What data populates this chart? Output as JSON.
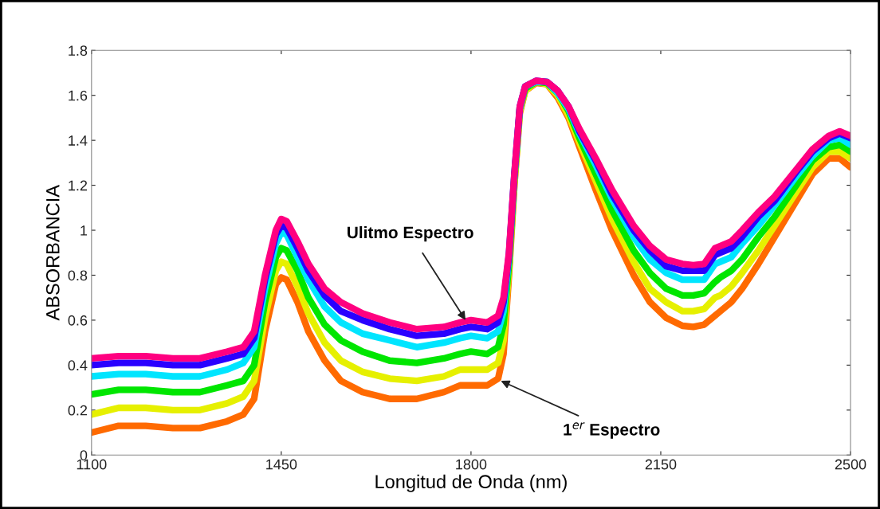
{
  "chart_data": {
    "type": "line",
    "xlabel": "Longitud de Onda (nm)",
    "ylabel": "ABSORBANCIA",
    "x": [
      1100,
      1150,
      1200,
      1250,
      1300,
      1350,
      1380,
      1400,
      1420,
      1440,
      1450,
      1460,
      1480,
      1500,
      1530,
      1560,
      1600,
      1650,
      1700,
      1750,
      1780,
      1800,
      1830,
      1850,
      1860,
      1870,
      1880,
      1890,
      1900,
      1920,
      1940,
      1960,
      1980,
      2000,
      2030,
      2060,
      2100,
      2130,
      2160,
      2190,
      2210,
      2230,
      2250,
      2260,
      2280,
      2300,
      2330,
      2360,
      2400,
      2430,
      2460,
      2480,
      2500
    ],
    "series": [
      {
        "color": "#ff6a00",
        "values": [
          0.1,
          0.13,
          0.13,
          0.12,
          0.12,
          0.15,
          0.18,
          0.25,
          0.55,
          0.76,
          0.79,
          0.78,
          0.68,
          0.55,
          0.42,
          0.33,
          0.28,
          0.25,
          0.25,
          0.28,
          0.31,
          0.31,
          0.31,
          0.34,
          0.45,
          0.8,
          1.2,
          1.52,
          1.62,
          1.655,
          1.65,
          1.59,
          1.5,
          1.37,
          1.18,
          1.0,
          0.8,
          0.68,
          0.61,
          0.575,
          0.57,
          0.58,
          0.62,
          0.64,
          0.68,
          0.74,
          0.85,
          0.97,
          1.13,
          1.25,
          1.32,
          1.32,
          1.28
        ]
      },
      {
        "color": "#e6f000",
        "values": [
          0.18,
          0.21,
          0.21,
          0.2,
          0.2,
          0.23,
          0.26,
          0.33,
          0.61,
          0.82,
          0.86,
          0.85,
          0.75,
          0.63,
          0.5,
          0.42,
          0.37,
          0.34,
          0.33,
          0.35,
          0.38,
          0.38,
          0.38,
          0.41,
          0.51,
          0.83,
          1.21,
          1.53,
          1.62,
          1.66,
          1.65,
          1.6,
          1.51,
          1.39,
          1.22,
          1.05,
          0.86,
          0.74,
          0.68,
          0.64,
          0.64,
          0.65,
          0.7,
          0.71,
          0.75,
          0.81,
          0.91,
          1.02,
          1.17,
          1.28,
          1.35,
          1.35,
          1.32
        ]
      },
      {
        "color": "#00e600",
        "values": [
          0.27,
          0.29,
          0.29,
          0.28,
          0.28,
          0.31,
          0.33,
          0.4,
          0.68,
          0.88,
          0.92,
          0.91,
          0.82,
          0.7,
          0.58,
          0.51,
          0.46,
          0.42,
          0.41,
          0.43,
          0.45,
          0.46,
          0.45,
          0.48,
          0.58,
          0.85,
          1.23,
          1.54,
          1.63,
          1.66,
          1.655,
          1.61,
          1.53,
          1.41,
          1.25,
          1.09,
          0.91,
          0.81,
          0.74,
          0.71,
          0.71,
          0.72,
          0.77,
          0.79,
          0.82,
          0.87,
          0.97,
          1.06,
          1.2,
          1.31,
          1.37,
          1.38,
          1.35
        ]
      },
      {
        "color": "#00e5ff",
        "values": [
          0.35,
          0.36,
          0.36,
          0.35,
          0.35,
          0.38,
          0.41,
          0.48,
          0.74,
          0.94,
          0.99,
          0.98,
          0.88,
          0.78,
          0.66,
          0.59,
          0.54,
          0.51,
          0.48,
          0.5,
          0.52,
          0.53,
          0.52,
          0.55,
          0.64,
          0.88,
          1.24,
          1.54,
          1.64,
          1.66,
          1.66,
          1.61,
          1.54,
          1.43,
          1.29,
          1.14,
          0.97,
          0.87,
          0.81,
          0.78,
          0.78,
          0.78,
          0.85,
          0.86,
          0.88,
          0.94,
          1.02,
          1.11,
          1.24,
          1.33,
          1.4,
          1.41,
          1.38
        ]
      },
      {
        "color": "#2a00ff",
        "values": [
          0.4,
          0.41,
          0.41,
          0.4,
          0.4,
          0.43,
          0.45,
          0.52,
          0.78,
          0.98,
          1.02,
          1.01,
          0.92,
          0.82,
          0.71,
          0.64,
          0.6,
          0.56,
          0.53,
          0.54,
          0.56,
          0.57,
          0.56,
          0.59,
          0.68,
          0.89,
          1.25,
          1.55,
          1.64,
          1.665,
          1.66,
          1.62,
          1.55,
          1.44,
          1.31,
          1.16,
          1.0,
          0.91,
          0.84,
          0.82,
          0.82,
          0.82,
          0.89,
          0.9,
          0.92,
          0.97,
          1.06,
          1.13,
          1.26,
          1.35,
          1.41,
          1.43,
          1.41
        ]
      },
      {
        "color": "#ff0080",
        "values": [
          0.43,
          0.44,
          0.44,
          0.43,
          0.43,
          0.46,
          0.48,
          0.55,
          0.8,
          1.0,
          1.05,
          1.04,
          0.95,
          0.85,
          0.74,
          0.68,
          0.63,
          0.59,
          0.56,
          0.57,
          0.59,
          0.6,
          0.59,
          0.62,
          0.7,
          0.9,
          1.25,
          1.55,
          1.64,
          1.665,
          1.66,
          1.62,
          1.55,
          1.45,
          1.32,
          1.18,
          1.02,
          0.93,
          0.87,
          0.85,
          0.845,
          0.85,
          0.92,
          0.93,
          0.95,
          1.0,
          1.08,
          1.15,
          1.27,
          1.36,
          1.42,
          1.44,
          1.42
        ]
      }
    ],
    "xlim": [
      1100,
      2500
    ],
    "xticks": [
      1100,
      1450,
      1800,
      2150,
      2500
    ],
    "ylim": [
      0,
      1.8
    ],
    "yticks": [
      0,
      0.2,
      0.4,
      0.6,
      0.8,
      1,
      1.2,
      1.4,
      1.6,
      1.8
    ],
    "grid": false,
    "legend": false,
    "annotations": [
      {
        "text": "Ulitmo Espectro",
        "x": 1790,
        "y": 0.6
      },
      {
        "text": "1$^{er}$ Espectro",
        "x": 1855,
        "y": 0.33
      }
    ]
  }
}
